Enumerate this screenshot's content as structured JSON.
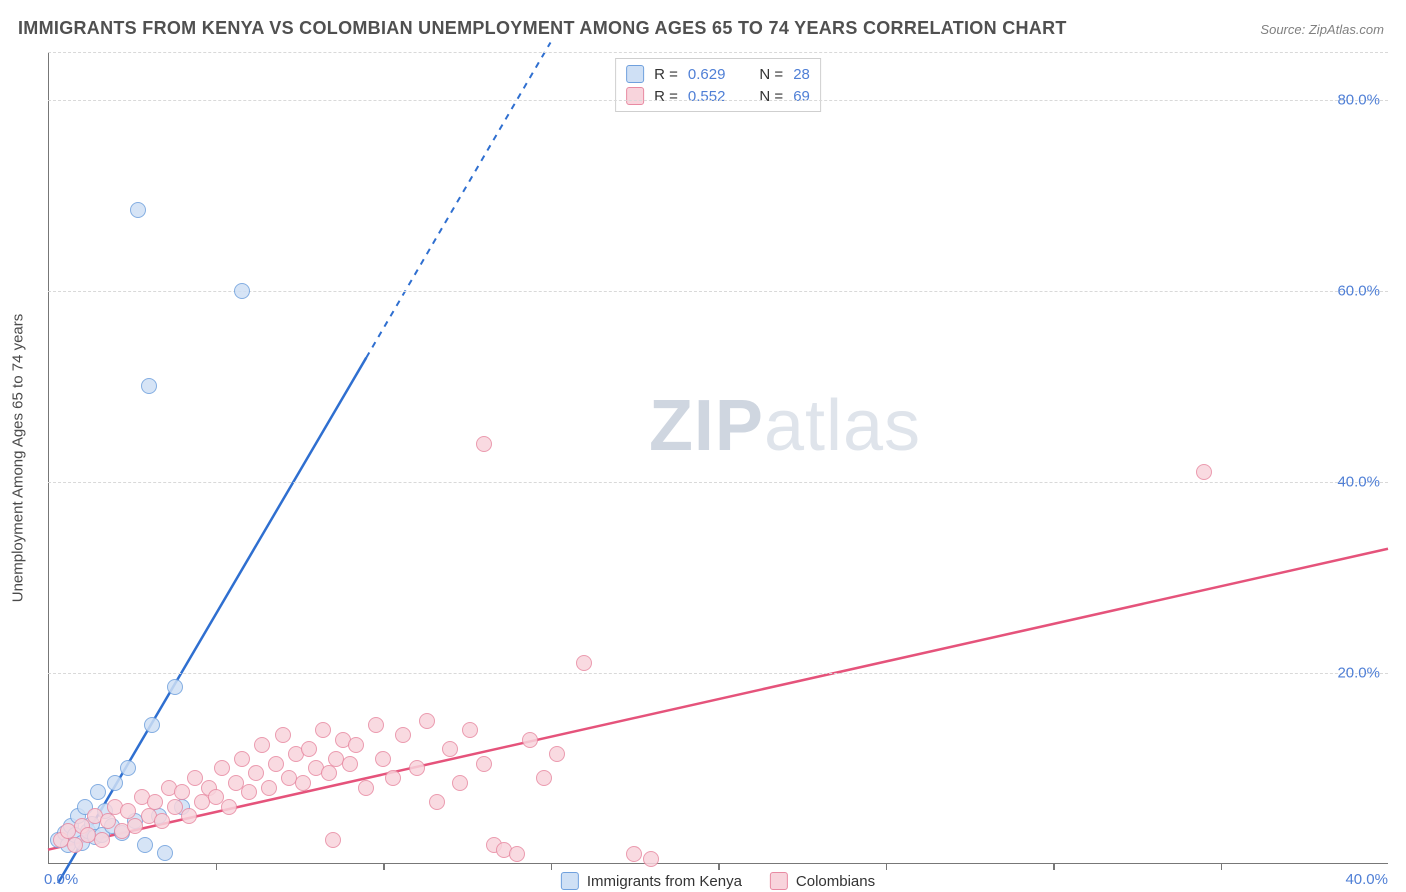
{
  "title": "IMMIGRANTS FROM KENYA VS COLOMBIAN UNEMPLOYMENT AMONG AGES 65 TO 74 YEARS CORRELATION CHART",
  "source_label": "Source:",
  "source_name": "ZipAtlas.com",
  "y_axis_label": "Unemployment Among Ages 65 to 74 years",
  "watermark_bold": "ZIP",
  "watermark_rest": "atlas",
  "chart": {
    "type": "scatter",
    "xlim": [
      0,
      40
    ],
    "ylim": [
      0,
      85
    ],
    "x_ticks": [
      0,
      40
    ],
    "x_minor_ticks": [
      5,
      10,
      15,
      20,
      25,
      30,
      35
    ],
    "y_ticks": [
      20,
      40,
      60,
      80
    ],
    "y_tick_fmt": "{v}.0%",
    "x_tick_fmt": "{v}.0%",
    "grid_color": "#d9d9d9",
    "background_color": "#ffffff",
    "axis_color": "#777777",
    "tick_label_color": "#4f7fd6",
    "marker_radius": 8,
    "marker_stroke_width": 1.2,
    "series": [
      {
        "name": "Immigrants from Kenya",
        "key": "kenya",
        "fill": "#cfe0f5",
        "stroke": "#6fa0dd",
        "line_color": "#2f6fd0",
        "R": "0.629",
        "N": "28",
        "regression": {
          "x1": 0.3,
          "y1": -2,
          "x2_solid": 9.5,
          "y2_solid": 53,
          "x2_dash": 15,
          "y2_dash": 86
        },
        "points": [
          [
            0.3,
            2.5
          ],
          [
            0.5,
            3.2
          ],
          [
            0.6,
            2.0
          ],
          [
            0.7,
            4.0
          ],
          [
            0.8,
            3.0
          ],
          [
            0.9,
            5.0
          ],
          [
            1.0,
            2.2
          ],
          [
            1.1,
            6.0
          ],
          [
            1.2,
            3.5
          ],
          [
            1.3,
            4.2
          ],
          [
            1.4,
            2.8
          ],
          [
            1.5,
            7.5
          ],
          [
            1.6,
            3.0
          ],
          [
            1.7,
            5.5
          ],
          [
            1.9,
            4.0
          ],
          [
            2.0,
            8.5
          ],
          [
            2.2,
            3.2
          ],
          [
            2.4,
            10.0
          ],
          [
            2.6,
            4.5
          ],
          [
            2.9,
            2.0
          ],
          [
            3.1,
            14.5
          ],
          [
            3.3,
            5.0
          ],
          [
            3.5,
            1.2
          ],
          [
            3.8,
            18.5
          ],
          [
            4.0,
            6.0
          ],
          [
            2.7,
            68.5
          ],
          [
            3.0,
            50.0
          ],
          [
            5.8,
            60.0
          ]
        ]
      },
      {
        "name": "Colombians",
        "key": "colombians",
        "fill": "#f8d4dc",
        "stroke": "#e88aa2",
        "line_color": "#e5537b",
        "R": "0.552",
        "N": "69",
        "regression": {
          "x1": 0,
          "y1": 1.5,
          "x2_solid": 40,
          "y2_solid": 33,
          "x2_dash": 40,
          "y2_dash": 33
        },
        "points": [
          [
            0.4,
            2.5
          ],
          [
            0.6,
            3.5
          ],
          [
            0.8,
            2.0
          ],
          [
            1.0,
            4.0
          ],
          [
            1.2,
            3.0
          ],
          [
            1.4,
            5.0
          ],
          [
            1.6,
            2.5
          ],
          [
            1.8,
            4.5
          ],
          [
            2.0,
            6.0
          ],
          [
            2.2,
            3.5
          ],
          [
            2.4,
            5.5
          ],
          [
            2.6,
            4.0
          ],
          [
            2.8,
            7.0
          ],
          [
            3.0,
            5.0
          ],
          [
            3.2,
            6.5
          ],
          [
            3.4,
            4.5
          ],
          [
            3.6,
            8.0
          ],
          [
            3.8,
            6.0
          ],
          [
            4.0,
            7.5
          ],
          [
            4.2,
            5.0
          ],
          [
            4.4,
            9.0
          ],
          [
            4.6,
            6.5
          ],
          [
            4.8,
            8.0
          ],
          [
            5.0,
            7.0
          ],
          [
            5.2,
            10.0
          ],
          [
            5.4,
            6.0
          ],
          [
            5.6,
            8.5
          ],
          [
            5.8,
            11.0
          ],
          [
            6.0,
            7.5
          ],
          [
            6.2,
            9.5
          ],
          [
            6.4,
            12.5
          ],
          [
            6.6,
            8.0
          ],
          [
            6.8,
            10.5
          ],
          [
            7.0,
            13.5
          ],
          [
            7.2,
            9.0
          ],
          [
            7.4,
            11.5
          ],
          [
            7.6,
            8.5
          ],
          [
            7.8,
            12.0
          ],
          [
            8.0,
            10.0
          ],
          [
            8.2,
            14.0
          ],
          [
            8.4,
            9.5
          ],
          [
            8.6,
            11.0
          ],
          [
            8.8,
            13.0
          ],
          [
            9.0,
            10.5
          ],
          [
            9.2,
            12.5
          ],
          [
            9.5,
            8.0
          ],
          [
            9.8,
            14.5
          ],
          [
            10.0,
            11.0
          ],
          [
            10.3,
            9.0
          ],
          [
            10.6,
            13.5
          ],
          [
            11.0,
            10.0
          ],
          [
            11.3,
            15.0
          ],
          [
            11.6,
            6.5
          ],
          [
            12.0,
            12.0
          ],
          [
            12.3,
            8.5
          ],
          [
            12.6,
            14.0
          ],
          [
            13.0,
            10.5
          ],
          [
            13.3,
            2.0
          ],
          [
            13.6,
            1.5
          ],
          [
            14.0,
            1.0
          ],
          [
            14.4,
            13.0
          ],
          [
            14.8,
            9.0
          ],
          [
            15.2,
            11.5
          ],
          [
            16.0,
            21.0
          ],
          [
            17.5,
            1.0
          ],
          [
            18.0,
            0.5
          ],
          [
            13.0,
            44.0
          ],
          [
            34.5,
            41.0
          ],
          [
            8.5,
            2.5
          ]
        ]
      }
    ]
  },
  "legend_bottom": [
    {
      "key": "kenya",
      "label": "Immigrants from Kenya"
    },
    {
      "key": "colombians",
      "label": "Colombians"
    }
  ]
}
